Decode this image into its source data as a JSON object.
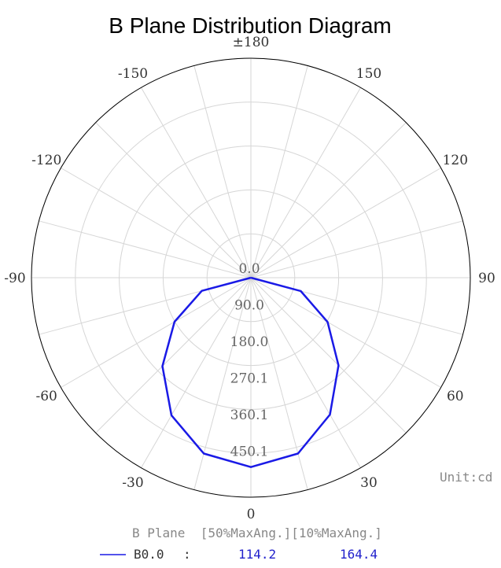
{
  "chart_data": {
    "type": "polar",
    "title": "B Plane Distribution Diagram",
    "angle_labels": [
      {
        "deg": 180,
        "text": "±180"
      },
      {
        "deg": 150,
        "text": "150"
      },
      {
        "deg": 120,
        "text": "120"
      },
      {
        "deg": 90,
        "text": "90"
      },
      {
        "deg": 60,
        "text": "60"
      },
      {
        "deg": 30,
        "text": "30"
      },
      {
        "deg": 0,
        "text": "0"
      },
      {
        "deg": -30,
        "text": "-30"
      },
      {
        "deg": -60,
        "text": "-60"
      },
      {
        "deg": -90,
        "text": "-90"
      },
      {
        "deg": -120,
        "text": "-120"
      },
      {
        "deg": -150,
        "text": "-150"
      }
    ],
    "radial_ticks": [
      {
        "value": 0.0,
        "text": "0.0"
      },
      {
        "value": 90.0,
        "text": "90.0"
      },
      {
        "value": 180.0,
        "text": "180.0"
      },
      {
        "value": 270.1,
        "text": "270.1"
      },
      {
        "value": 360.1,
        "text": "360.1"
      },
      {
        "value": 450.1,
        "text": "450.1"
      }
    ],
    "r_max": 540.1,
    "unit_label": "Unit:cd",
    "grid": true,
    "series": [
      {
        "name": "B0.0",
        "color": "#1a1ae6",
        "angles": [
          -90,
          -75,
          -60,
          -45,
          -30,
          -15,
          0,
          15,
          30,
          45,
          60,
          75,
          90
        ],
        "values": [
          0,
          125,
          217,
          308,
          391,
          448,
          466,
          448,
          389,
          305,
          218,
          127,
          0
        ]
      }
    ],
    "legend": {
      "header": "B Plane  [50%MaxAng.][10%MaxAng.]",
      "rows": [
        {
          "name": "B0.0",
          "separator": ":",
          "half_max_angle": "114.2",
          "tenth_max_angle": "164.4",
          "color": "#1a1ae6"
        }
      ]
    }
  }
}
